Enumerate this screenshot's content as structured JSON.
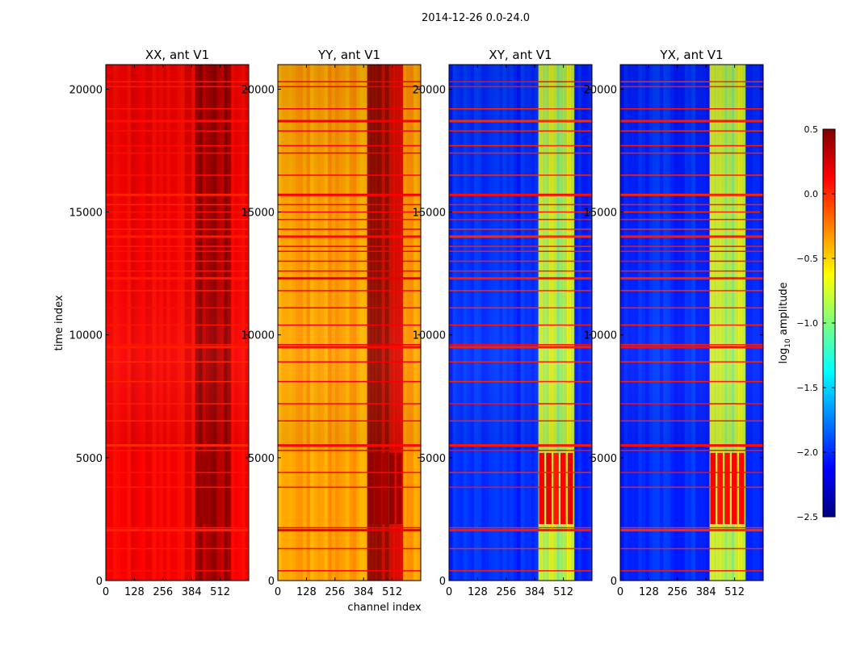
{
  "chart_data": {
    "type": "heatmap",
    "suptitle": "2014-12-26 0.0-24.0",
    "xlabel": "channel index",
    "ylabel": "time index",
    "xlim": [
      0,
      640
    ],
    "ylim": [
      0,
      21000
    ],
    "xticks": [
      0,
      128,
      256,
      384,
      512
    ],
    "yticks": [
      0,
      5000,
      10000,
      15000,
      20000
    ],
    "panels": [
      {
        "title": "XX, ant V1",
        "base_level": 0.15,
        "band_level": 0.42,
        "flag_level": 0.05
      },
      {
        "title": "YY, ant V1",
        "base_level": -0.35,
        "band_level": 0.4,
        "flag_level": 0.15
      },
      {
        "title": "XY, ant V1",
        "base_level": -2.0,
        "band_level": -0.8,
        "flag_level": 0.05
      },
      {
        "title": "YX, ant V1",
        "base_level": -2.0,
        "band_level": -0.8,
        "flag_level": 0.05
      }
    ],
    "flag_rows": [
      400,
      1300,
      2050,
      2150,
      3800,
      4400,
      5300,
      5500,
      6500,
      7200,
      8100,
      8900,
      9500,
      9600,
      10400,
      11100,
      11800,
      12300,
      12600,
      13000,
      13400,
      13600,
      14000,
      14300,
      14700,
      15000,
      15300,
      15700,
      16500,
      17400,
      17700,
      18300,
      18700,
      19200,
      20100,
      20300
    ],
    "colorbar": {
      "label": "log",
      "label_sub": "10",
      "label_suffix": " amplitude",
      "range": [
        -2.5,
        0.5
      ],
      "ticks": [
        "0.5",
        "0.0",
        "−0.5",
        "−1.0",
        "−1.5",
        "−2.0",
        "−2.5"
      ],
      "tick_values": [
        0.5,
        0.0,
        -0.5,
        -1.0,
        -1.5,
        -2.0,
        -2.5
      ],
      "colors": [
        "#00007f",
        "#0000ff",
        "#007fff",
        "#00ffff",
        "#7fff7f",
        "#ffff00",
        "#ff7f00",
        "#ff0000",
        "#7f0000"
      ]
    }
  }
}
